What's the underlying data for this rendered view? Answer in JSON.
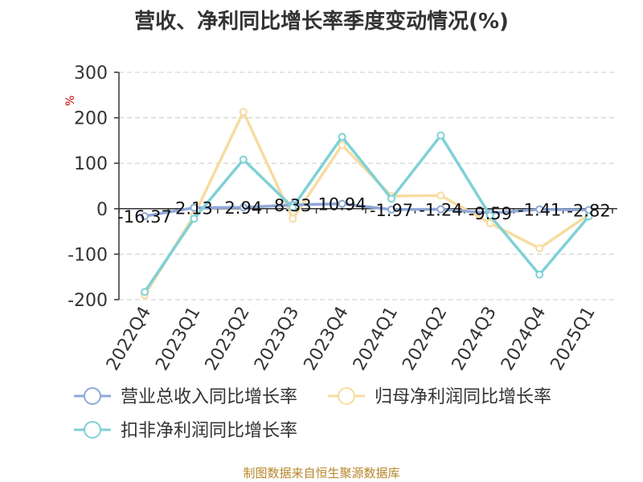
{
  "title": "营收、净利同比增长率季度变动情况(%)",
  "source": "制图数据来自恒生聚源数据库",
  "colors": {
    "revenue": "#8fa8d8",
    "net_profit": "#f7dca0",
    "deducted_net_profit": "#7fd1d6"
  },
  "chart_data": {
    "type": "line",
    "title": "营收、净利同比增长率季度变动情况(%)",
    "ylabel": "%",
    "ylim": [
      -200,
      300
    ],
    "yticks": [
      -200,
      -100,
      0,
      100,
      200,
      300
    ],
    "grid": true,
    "legend_position": "bottom",
    "categories": [
      "2022Q4",
      "2023Q1",
      "2023Q2",
      "2023Q3",
      "2023Q4",
      "2024Q1",
      "2024Q2",
      "2024Q3",
      "2024Q4",
      "2025Q1"
    ],
    "series": [
      {
        "name": "营业总收入同比增长率",
        "values": [
          -16.37,
          2.13,
          2.94,
          8.33,
          10.94,
          -1.97,
          -1.24,
          -9.59,
          -1.41,
          -2.82
        ]
      },
      {
        "name": "归母净利润同比增长率",
        "values": [
          -190,
          -15,
          213,
          -22,
          140,
          28,
          29,
          -32,
          -87,
          -13
        ]
      },
      {
        "name": "扣非净利润同比增长率",
        "values": [
          -183,
          -22,
          108,
          3,
          158,
          22,
          161,
          -15,
          -145,
          -17
        ]
      }
    ],
    "data_labels": [
      "-16.37",
      "2.13",
      "2.94",
      "8.33",
      "10.94",
      "-1.97",
      "-1.24",
      "-9.59",
      "-1.41",
      "-2.82"
    ]
  }
}
